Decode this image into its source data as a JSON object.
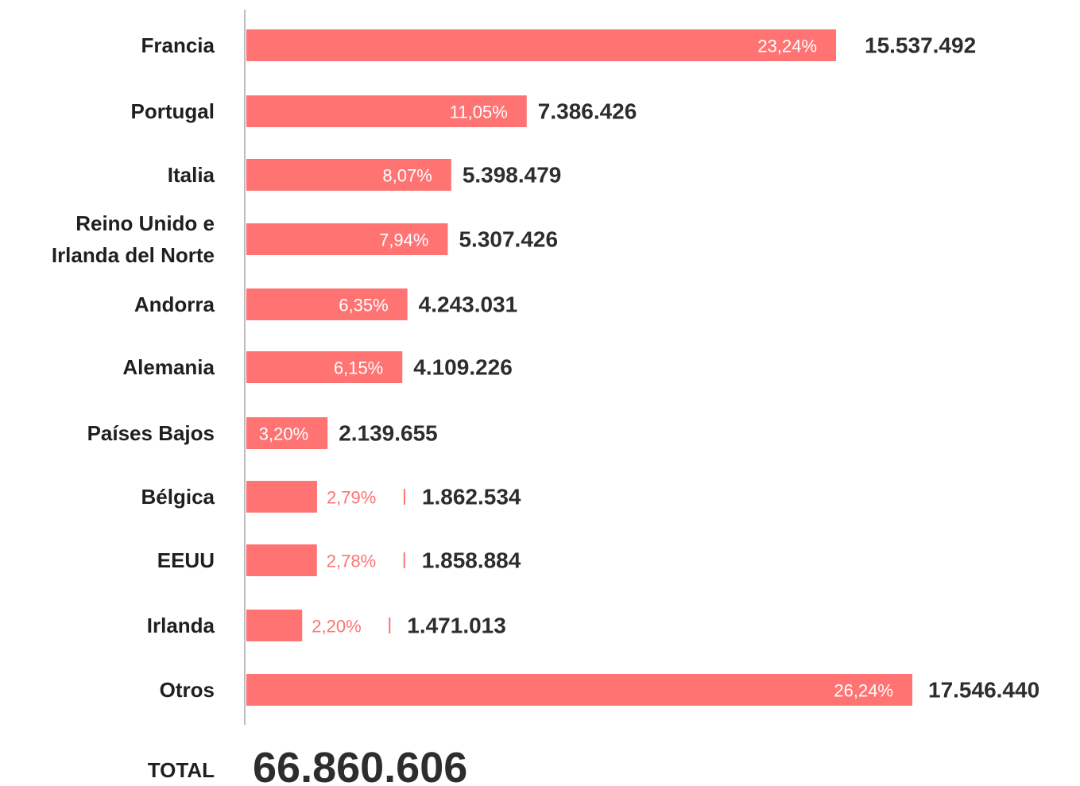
{
  "chart_data": {
    "type": "bar",
    "orientation": "horizontal",
    "categories": [
      [
        "Francia"
      ],
      [
        "Portugal"
      ],
      [
        "Italia"
      ],
      [
        "Reino Unido e",
        "Irlanda del Norte"
      ],
      [
        "Andorra"
      ],
      [
        "Alemania"
      ],
      [
        "Países Bajos"
      ],
      [
        "Bélgica"
      ],
      [
        "EEUU"
      ],
      [
        "Irlanda"
      ],
      [
        "Otros"
      ]
    ],
    "values": [
      15537492,
      7386426,
      5398479,
      5307426,
      4243031,
      4109226,
      2139655,
      1862534,
      1858884,
      1471013,
      17546440
    ],
    "value_labels": [
      "15.537.492",
      "7.386.426",
      "5.398.479",
      "5.307.426",
      "4.243.031",
      "4.109.226",
      "2.139.655",
      "1.862.534",
      "1.858.884",
      "1.471.013",
      "17.546.440"
    ],
    "percent_labels": [
      "23,24%",
      "11,05%",
      "8,07%",
      "7,94%",
      "6,35%",
      "6,15%",
      "3,20%",
      "2,79%",
      "2,78%",
      "2,20%",
      "26,24%"
    ],
    "percent_inside_bar": [
      true,
      true,
      true,
      true,
      true,
      true,
      true,
      false,
      false,
      false,
      true
    ],
    "total_label": "TOTAL",
    "total_value": "66.860.606",
    "title": "",
    "xlabel": "",
    "ylabel": "",
    "grid": false,
    "legend": "none",
    "colors": {
      "bar": "#ff7373",
      "inside_text": "#ffffff",
      "outside_percent_text": "#ff7373",
      "value_text": "#2d2d2d",
      "category_text": "#1f1f1f",
      "axis": "#bdbdbd"
    }
  }
}
